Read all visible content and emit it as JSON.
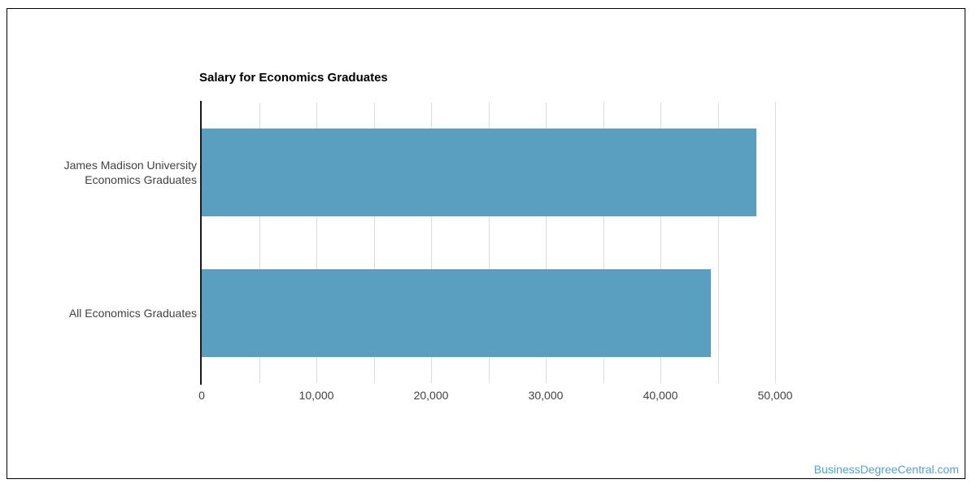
{
  "chart_data": {
    "type": "bar",
    "orientation": "horizontal",
    "title": "Salary for Economics Graduates",
    "categories": [
      "James Madison University Economics Graduates",
      "All Economics Graduates"
    ],
    "category_lines": [
      [
        "James Madison University",
        "Economics Graduates"
      ],
      [
        "All Economics Graduates"
      ]
    ],
    "series": [
      {
        "name": "Salary",
        "values": [
          48400,
          44400
        ]
      }
    ],
    "xlabel": "",
    "ylabel": "",
    "xlim": [
      0,
      50000
    ],
    "x_ticks": [
      0,
      10000,
      20000,
      30000,
      40000,
      50000
    ],
    "x_tick_labels": [
      "0",
      "10,000",
      "20,000",
      "30,000",
      "40,000",
      "50,000"
    ],
    "minor_gridline_step": 5000,
    "grid": "vertical-only",
    "legend": "none",
    "bar_color": "#5A9FBF"
  },
  "watermark": {
    "text": "BusinessDegreeCentral.com",
    "color": "#55A2CB"
  },
  "colors": {
    "background": "#FFFFFF",
    "frame_border": "#000000",
    "axis_line": "#1A1A1A",
    "gridline": "#DCDCDC",
    "tick_text": "#424242",
    "title_text": "#000000"
  }
}
